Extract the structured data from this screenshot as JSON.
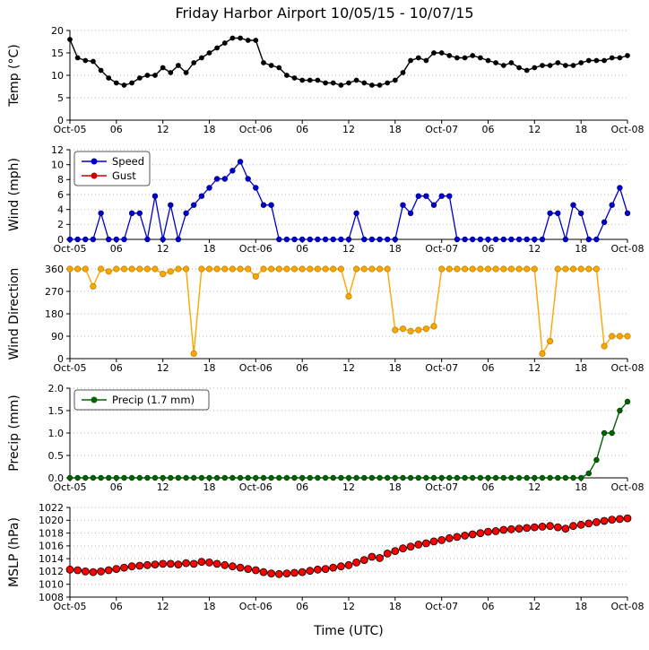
{
  "figure": {
    "title": "Friday Harbor Airport 10/05/15 - 10/07/15",
    "xlabel": "Time (UTC)"
  },
  "x_axis": {
    "range_hours": [
      0,
      72
    ],
    "tick_hours": [
      0,
      6,
      12,
      18,
      24,
      30,
      36,
      42,
      48,
      54,
      60,
      66,
      72
    ],
    "tick_labels": [
      "Oct-05",
      "06",
      "12",
      "18",
      "Oct-06",
      "06",
      "12",
      "18",
      "Oct-07",
      "06",
      "12",
      "18",
      "Oct-08"
    ],
    "sample_hours": [
      0,
      1,
      2,
      3,
      4,
      5,
      6,
      7,
      8,
      9,
      10,
      11,
      12,
      13,
      14,
      15,
      16,
      17,
      18,
      19,
      20,
      21,
      22,
      23,
      24,
      25,
      26,
      27,
      28,
      29,
      30,
      31,
      32,
      33,
      34,
      35,
      36,
      37,
      38,
      39,
      40,
      41,
      42,
      43,
      44,
      45,
      46,
      47,
      48,
      49,
      50,
      51,
      52,
      53,
      54,
      55,
      56,
      57,
      58,
      59,
      60,
      61,
      62,
      63,
      64,
      65,
      66,
      67,
      68,
      69,
      70,
      71,
      72
    ]
  },
  "chart_data": [
    {
      "type": "line",
      "ylabel": "Temp (°C)",
      "ylim": [
        0,
        20
      ],
      "yticks": [
        0,
        5,
        10,
        15,
        20
      ],
      "ytick_labels": [
        "0",
        "5",
        "10",
        "15",
        "20"
      ],
      "grid": "horizontal-dotted",
      "series": [
        {
          "name": "temperature",
          "color": "#000000",
          "marker_face": "#000000",
          "marker_edge": "#000000",
          "marker_size": 2.5,
          "line_width": 1.4,
          "values": [
            18.0,
            13.9,
            13.3,
            13.1,
            11.1,
            9.4,
            8.3,
            7.8,
            8.3,
            9.4,
            10.0,
            10.0,
            11.7,
            10.6,
            12.2,
            10.6,
            12.8,
            13.9,
            15.0,
            16.1,
            17.2,
            18.3,
            18.3,
            17.8,
            17.8,
            12.8,
            12.2,
            11.7,
            10.0,
            9.4,
            8.9,
            8.9,
            8.9,
            8.3,
            8.3,
            7.8,
            8.3,
            8.9,
            8.3,
            7.8,
            7.8,
            8.3,
            8.9,
            10.6,
            13.3,
            13.9,
            13.3,
            15.0,
            15.0,
            14.4,
            13.9,
            13.9,
            14.4,
            13.9,
            13.3,
            12.8,
            12.2,
            12.8,
            11.7,
            11.1,
            11.7,
            12.2,
            12.2,
            12.8,
            12.2,
            12.2,
            12.8,
            13.3,
            13.3,
            13.3,
            13.9,
            13.9,
            14.4
          ]
        }
      ]
    },
    {
      "type": "line",
      "ylabel": "Wind (mph)",
      "ylim": [
        0,
        12
      ],
      "yticks": [
        0,
        2,
        4,
        6,
        8,
        10,
        12
      ],
      "ytick_labels": [
        "0",
        "2",
        "4",
        "6",
        "8",
        "10",
        "12"
      ],
      "grid": "horizontal-dotted",
      "legend": {
        "show": true,
        "width": 84,
        "entries": [
          {
            "label": "Speed",
            "color": "#0000CD"
          },
          {
            "label": "Gust",
            "color": "#CC0000"
          }
        ]
      },
      "series": [
        {
          "name": "wind-speed",
          "color": "#0000CD",
          "marker_face": "#0000CD",
          "marker_edge": "#00008B",
          "marker_size": 2.8,
          "line_width": 1.3,
          "values": [
            0,
            0,
            0,
            0,
            3.5,
            0,
            0,
            0,
            3.5,
            3.5,
            0,
            5.8,
            0,
            4.6,
            0,
            3.5,
            4.6,
            5.8,
            6.9,
            8.1,
            8.1,
            9.2,
            10.4,
            8.1,
            6.9,
            4.6,
            4.6,
            0,
            0,
            0,
            0,
            0,
            0,
            0,
            0,
            0,
            0,
            3.5,
            0,
            0,
            0,
            0,
            0,
            4.6,
            3.5,
            5.8,
            5.8,
            4.6,
            5.8,
            5.8,
            0,
            0,
            0,
            0,
            0,
            0,
            0,
            0,
            0,
            0,
            0,
            0,
            3.5,
            3.5,
            0,
            4.6,
            3.5,
            0,
            0,
            2.3,
            4.6,
            6.9,
            3.5
          ]
        },
        {
          "name": "wind-gust",
          "color": "#CC0000",
          "marker_face": "#CC0000",
          "marker_edge": "#8B0000",
          "marker_size": 2.8,
          "line_width": 1.3,
          "values": []
        }
      ]
    },
    {
      "type": "line",
      "ylabel": "Wind Direction",
      "ylim": [
        0,
        360
      ],
      "yticks": [
        0,
        90,
        180,
        270,
        360
      ],
      "ytick_labels": [
        "0",
        "90",
        "180",
        "270",
        "360"
      ],
      "grid": "horizontal-dotted",
      "series": [
        {
          "name": "wind-direction",
          "color": "#FFA500",
          "marker_face": "#FFA500",
          "marker_edge": "#B8860B",
          "marker_size": 3.2,
          "line_width": 1.4,
          "values": [
            360,
            360,
            360,
            290,
            360,
            350,
            360,
            360,
            360,
            360,
            360,
            360,
            340,
            350,
            360,
            360,
            20,
            360,
            360,
            360,
            360,
            360,
            360,
            360,
            330,
            360,
            360,
            360,
            360,
            360,
            360,
            360,
            360,
            360,
            360,
            360,
            250,
            360,
            360,
            360,
            360,
            360,
            115,
            120,
            110,
            115,
            120,
            130,
            360,
            360,
            360,
            360,
            360,
            360,
            360,
            360,
            360,
            360,
            360,
            360,
            360,
            20,
            70,
            360,
            360,
            360,
            360,
            360,
            360,
            50,
            90,
            90,
            90
          ]
        }
      ]
    },
    {
      "type": "line",
      "ylabel": "Precip (mm)",
      "ylim": [
        0.0,
        2.0
      ],
      "yticks": [
        0.0,
        0.5,
        1.0,
        1.5,
        2.0
      ],
      "ytick_labels": [
        "0.0",
        "0.5",
        "1.0",
        "1.5",
        "2.0"
      ],
      "grid": "horizontal-dotted",
      "legend": {
        "show": true,
        "width": 150,
        "entries": [
          {
            "label": "Precip (1.7 mm)",
            "color": "#006400"
          }
        ]
      },
      "series": [
        {
          "name": "precipitation",
          "color": "#006400",
          "marker_face": "#006400",
          "marker_edge": "#004000",
          "marker_size": 2.8,
          "line_width": 1.4,
          "values": [
            0,
            0,
            0,
            0,
            0,
            0,
            0,
            0,
            0,
            0,
            0,
            0,
            0,
            0,
            0,
            0,
            0,
            0,
            0,
            0,
            0,
            0,
            0,
            0,
            0,
            0,
            0,
            0,
            0,
            0,
            0,
            0,
            0,
            0,
            0,
            0,
            0,
            0,
            0,
            0,
            0,
            0,
            0,
            0,
            0,
            0,
            0,
            0,
            0,
            0,
            0,
            0,
            0,
            0,
            0,
            0,
            0,
            0,
            0,
            0,
            0,
            0,
            0,
            0,
            0,
            0,
            0,
            0.1,
            0.4,
            1.0,
            1.0,
            1.5,
            1.7
          ]
        }
      ]
    },
    {
      "type": "line",
      "ylabel": "MSLP (hPa)",
      "ylim": [
        1008,
        1022
      ],
      "yticks": [
        1008,
        1010,
        1012,
        1014,
        1016,
        1018,
        1020,
        1022
      ],
      "ytick_labels": [
        "1008",
        "1010",
        "1012",
        "1014",
        "1016",
        "1018",
        "1020",
        "1022"
      ],
      "grid": "horizontal-dotted",
      "series": [
        {
          "name": "mslp",
          "color": "#000000",
          "marker_face": "#FF0000",
          "marker_edge": "#000000",
          "marker_size": 4,
          "line_width": 1,
          "values": [
            1012.3,
            1012.2,
            1012.0,
            1011.9,
            1012.0,
            1012.2,
            1012.4,
            1012.6,
            1012.8,
            1012.9,
            1013.0,
            1013.1,
            1013.2,
            1013.2,
            1013.1,
            1013.3,
            1013.2,
            1013.5,
            1013.4,
            1013.2,
            1013.0,
            1012.8,
            1012.6,
            1012.4,
            1012.2,
            1011.9,
            1011.7,
            1011.6,
            1011.7,
            1011.8,
            1011.9,
            1012.1,
            1012.3,
            1012.4,
            1012.6,
            1012.8,
            1013.0,
            1013.4,
            1013.8,
            1014.3,
            1014.1,
            1014.8,
            1015.2,
            1015.6,
            1015.9,
            1016.2,
            1016.4,
            1016.7,
            1016.9,
            1017.2,
            1017.4,
            1017.6,
            1017.8,
            1018.0,
            1018.2,
            1018.3,
            1018.5,
            1018.6,
            1018.7,
            1018.8,
            1018.9,
            1019.0,
            1019.1,
            1018.9,
            1018.7,
            1019.1,
            1019.3,
            1019.5,
            1019.7,
            1019.9,
            1020.1,
            1020.2,
            1020.3
          ]
        }
      ]
    }
  ]
}
